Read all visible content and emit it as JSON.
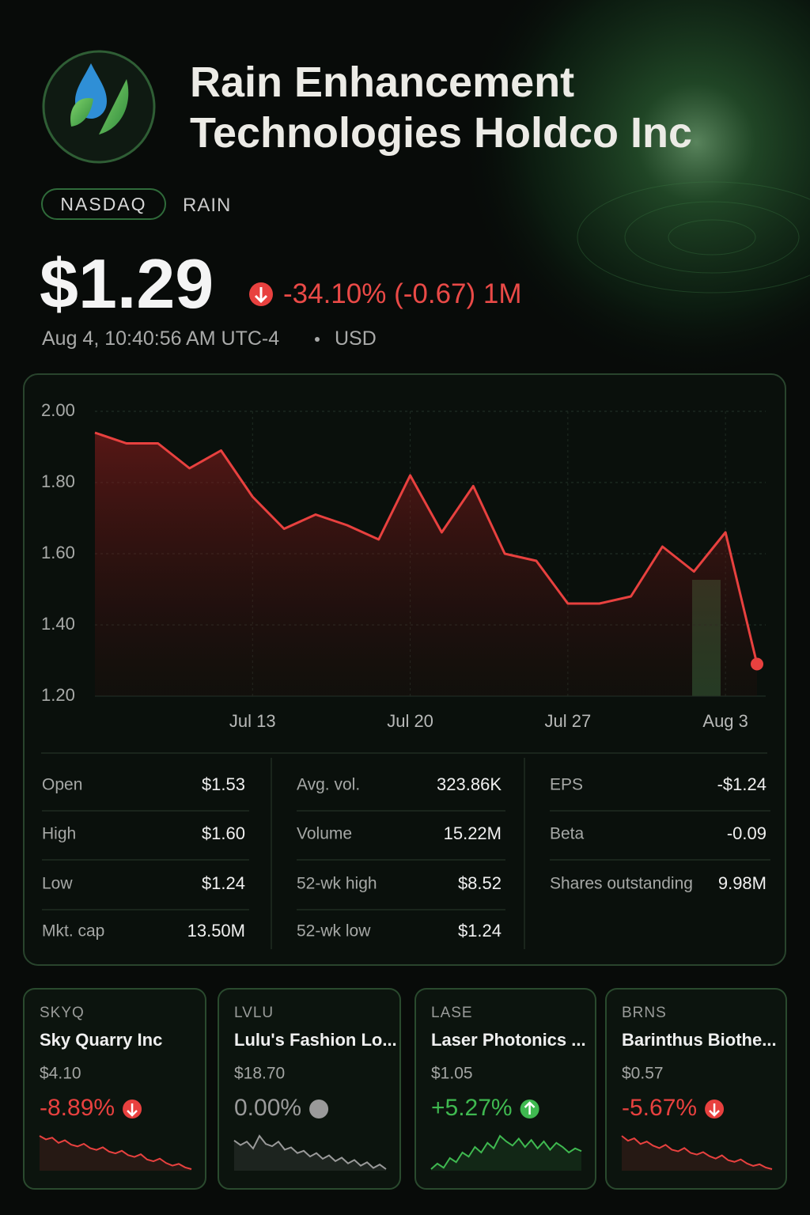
{
  "header": {
    "title": "Rain Enhancement Technologies Holdco Inc",
    "exchange": "NASDAQ",
    "ticker": "RAIN"
  },
  "quote": {
    "price": "$1.29",
    "change": "-34.10% (-0.67)",
    "period": "1M",
    "timestamp": "Aug 4, 10:40:56 AM UTC-4",
    "currency": "USD"
  },
  "price_chart": {
    "type": "line",
    "color": "#e8413f",
    "categories": [
      null,
      null,
      null,
      null,
      null,
      "Jul 13",
      null,
      null,
      null,
      null,
      "Jul 20",
      null,
      null,
      null,
      null,
      "Jul 27",
      null,
      null,
      null,
      null,
      "Aug 3",
      null
    ],
    "values": [
      1.94,
      1.91,
      1.91,
      1.84,
      1.89,
      1.76,
      1.67,
      1.71,
      1.68,
      1.64,
      1.82,
      1.66,
      1.79,
      1.6,
      1.58,
      1.46,
      1.46,
      1.48,
      1.62,
      1.55,
      1.66,
      1.29
    ],
    "ylim": [
      1.2,
      2.0
    ],
    "yticks": [
      {
        "value": 1.2,
        "label": "1.20"
      },
      {
        "value": 1.4,
        "label": "1.40"
      },
      {
        "value": 1.6,
        "label": "1.60"
      },
      {
        "value": 1.8,
        "label": "1.80"
      },
      {
        "value": 2.0,
        "label": "2.00"
      }
    ],
    "grid": true
  },
  "stats": [
    [
      [
        "Open",
        "$1.53"
      ],
      [
        "High",
        "$1.60"
      ],
      [
        "Low",
        "$1.24"
      ],
      [
        "Mkt. cap",
        "13.50M"
      ]
    ],
    [
      [
        "Avg. vol.",
        "323.86K"
      ],
      [
        "Volume",
        "15.22M"
      ],
      [
        "52-wk high",
        "$8.52"
      ],
      [
        "52-wk low",
        "$1.24"
      ]
    ],
    [
      [
        "EPS",
        "-$1.24"
      ],
      [
        "Beta",
        "-0.09"
      ],
      [
        "Shares outstanding",
        "9.98M"
      ]
    ]
  ],
  "related": [
    {
      "ticker": "SKYQ",
      "name": "Sky Quarry Inc",
      "price": "$4.10",
      "change": "-8.89%",
      "trend": "down",
      "color": "#e8413f",
      "spark": [
        10,
        9.6,
        9.8,
        9.2,
        9.5,
        9,
        8.8,
        9.1,
        8.6,
        8.4,
        8.7,
        8.2,
        8,
        8.3,
        7.8,
        7.6,
        7.9,
        7.3,
        7.1,
        7.4,
        6.9,
        6.6,
        6.8,
        6.4,
        6.2
      ]
    },
    {
      "ticker": "LVLU",
      "name": "Lulu's Fashion Lo...",
      "price": "$18.70",
      "change": "0.00%",
      "trend": "flat",
      "color": "#9a9a9a",
      "spark": [
        9,
        8.6,
        8.9,
        8.3,
        9.4,
        8.7,
        8.5,
        8.9,
        8.2,
        8.4,
        7.9,
        8.1,
        7.6,
        7.9,
        7.4,
        7.7,
        7.2,
        7.5,
        7,
        7.3,
        6.8,
        7.1,
        6.6,
        6.9,
        6.5
      ]
    },
    {
      "ticker": "LASE",
      "name": "Laser Photonics ...",
      "price": "$1.05",
      "change": "+5.27%",
      "trend": "up",
      "color": "#3fb950",
      "spark": [
        5,
        5.4,
        5.1,
        5.8,
        5.5,
        6.2,
        5.9,
        6.6,
        6.2,
        6.9,
        6.5,
        7.4,
        7,
        6.7,
        7.2,
        6.6,
        7.1,
        6.5,
        7,
        6.4,
        6.9,
        6.6,
        6.2,
        6.5,
        6.3
      ]
    },
    {
      "ticker": "BRNS",
      "name": "Barinthus Biothe...",
      "price": "$0.57",
      "change": "-5.67%",
      "trend": "down",
      "color": "#e8413f",
      "spark": [
        10,
        9.4,
        9.7,
        9,
        9.3,
        8.8,
        8.5,
        8.9,
        8.3,
        8.1,
        8.5,
        7.9,
        7.7,
        8,
        7.5,
        7.2,
        7.6,
        7,
        6.8,
        7.1,
        6.6,
        6.3,
        6.5,
        6.1,
        5.9
      ]
    }
  ]
}
